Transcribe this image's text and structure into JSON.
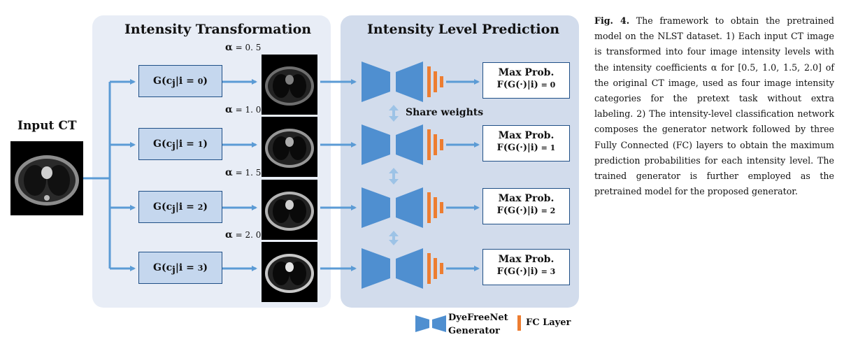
{
  "panels": {
    "left_title": "Intensity Transformation",
    "right_title": "Intensity Level Prediction"
  },
  "input_label": "Input CT",
  "share_weights": "Share weights",
  "rows": [
    {
      "g_main": "G(c",
      "g_sub": "j",
      "g_mid": "|i = ",
      "g_idx": "0",
      "alpha": "= 0. 5",
      "max_prob": "Max Prob.",
      "f_main": "F(G(·)|i)",
      "f_idx": " = 0"
    },
    {
      "g_main": "G(c",
      "g_sub": "j",
      "g_mid": "|i = ",
      "g_idx": "1",
      "alpha": "= 1. 0",
      "max_prob": "Max Prob.",
      "f_main": "F(G(·)|i)",
      "f_idx": " = 1"
    },
    {
      "g_main": "G(c",
      "g_sub": "j",
      "g_mid": "|i = ",
      "g_idx": "2",
      "alpha": "= 1. 5",
      "max_prob": "Max Prob.",
      "f_main": "F(G(·)|i)",
      "f_idx": " = 2"
    },
    {
      "g_main": "G(c",
      "g_sub": "j",
      "g_mid": "|i = ",
      "g_idx": "3",
      "alpha": "= 2. 0",
      "max_prob": "Max Prob.",
      "f_main": "F(G(·)|i)",
      "f_idx": " = 3"
    }
  ],
  "alpha_symbol": "α",
  "legend": {
    "generator_line1": "DyeFreeNet",
    "generator_line2": "Generator",
    "fc": "FC Layer"
  },
  "caption": {
    "label": "Fig. 4.",
    "text": " The framework to obtain the pretrained model on the NLST dataset. 1) Each input CT image is transformed into four image intensity levels with the intensity coefficients α for [0.5, 1.0, 1.5, 2.0] of the original CT image, used as four image intensity categories for the pretext task without extra labeling. 2) The intensity-level classification network composes the generator network followed by three Fully Connected (FC) layers to obtain the maximum prediction probabilities for each intensity level. The trained generator is further employed as the pretrained model for the proposed generator."
  },
  "colors": {
    "panel_left": "#e8edf6",
    "panel_right": "#d2dcec",
    "arrow": "#5b9bd5",
    "generator": "#4f8fd0",
    "fc": "#ed7d31",
    "box_fill": "#c5d7ee",
    "box_border": "#1f4f86"
  }
}
